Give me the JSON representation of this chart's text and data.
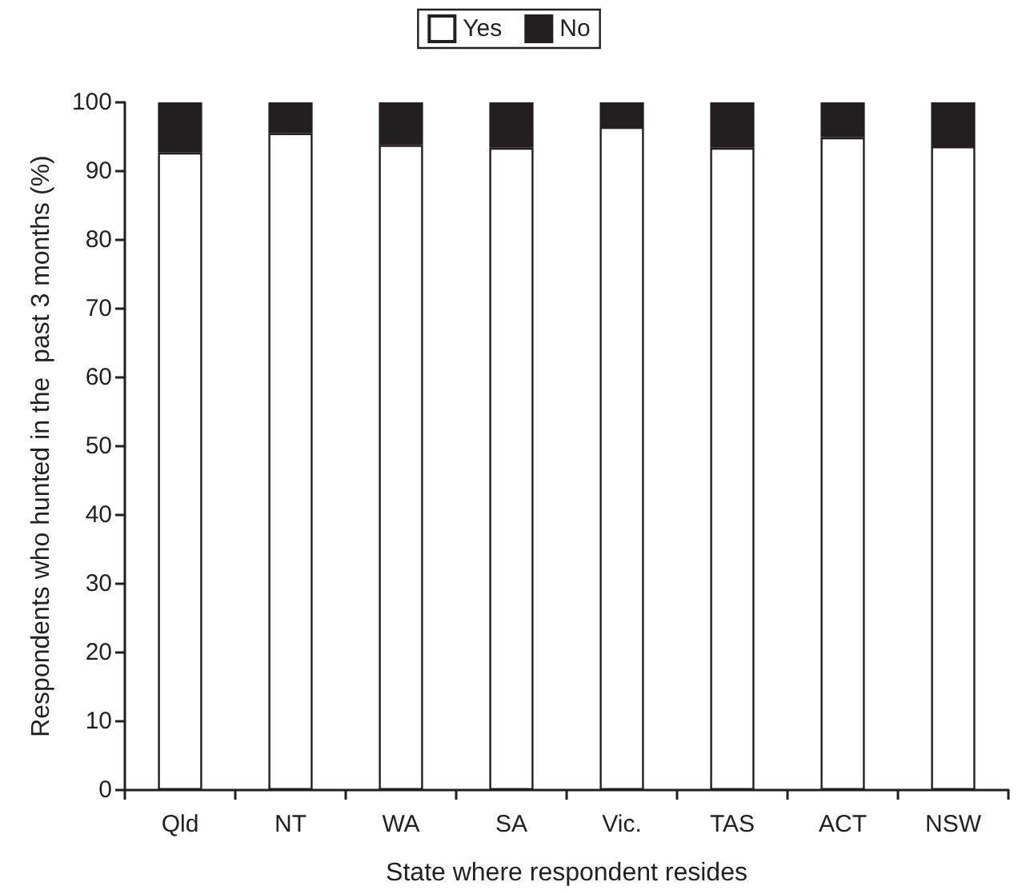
{
  "chart_data": {
    "type": "bar",
    "stacked": true,
    "xlabel": "State where respondent resides",
    "ylabel": "Respondents who hunted in the  past 3 months (%)",
    "categories": [
      "Qld",
      "NT",
      "WA",
      "SA",
      "Vic.",
      "TAS",
      "ACT",
      "NSW"
    ],
    "series": [
      {
        "name": "Yes",
        "color": "#ffffff",
        "values": [
          92.7,
          95.5,
          93.8,
          93.4,
          96.4,
          93.4,
          94.9,
          93.6
        ]
      },
      {
        "name": "No",
        "color": "#231f20",
        "values": [
          7.3,
          4.5,
          6.2,
          6.6,
          3.6,
          6.6,
          5.1,
          6.4
        ]
      }
    ],
    "ylim": [
      0,
      100
    ],
    "yticks": [
      0,
      10,
      20,
      30,
      40,
      50,
      60,
      70,
      80,
      90,
      100
    ],
    "grid": false,
    "legend": "top"
  }
}
